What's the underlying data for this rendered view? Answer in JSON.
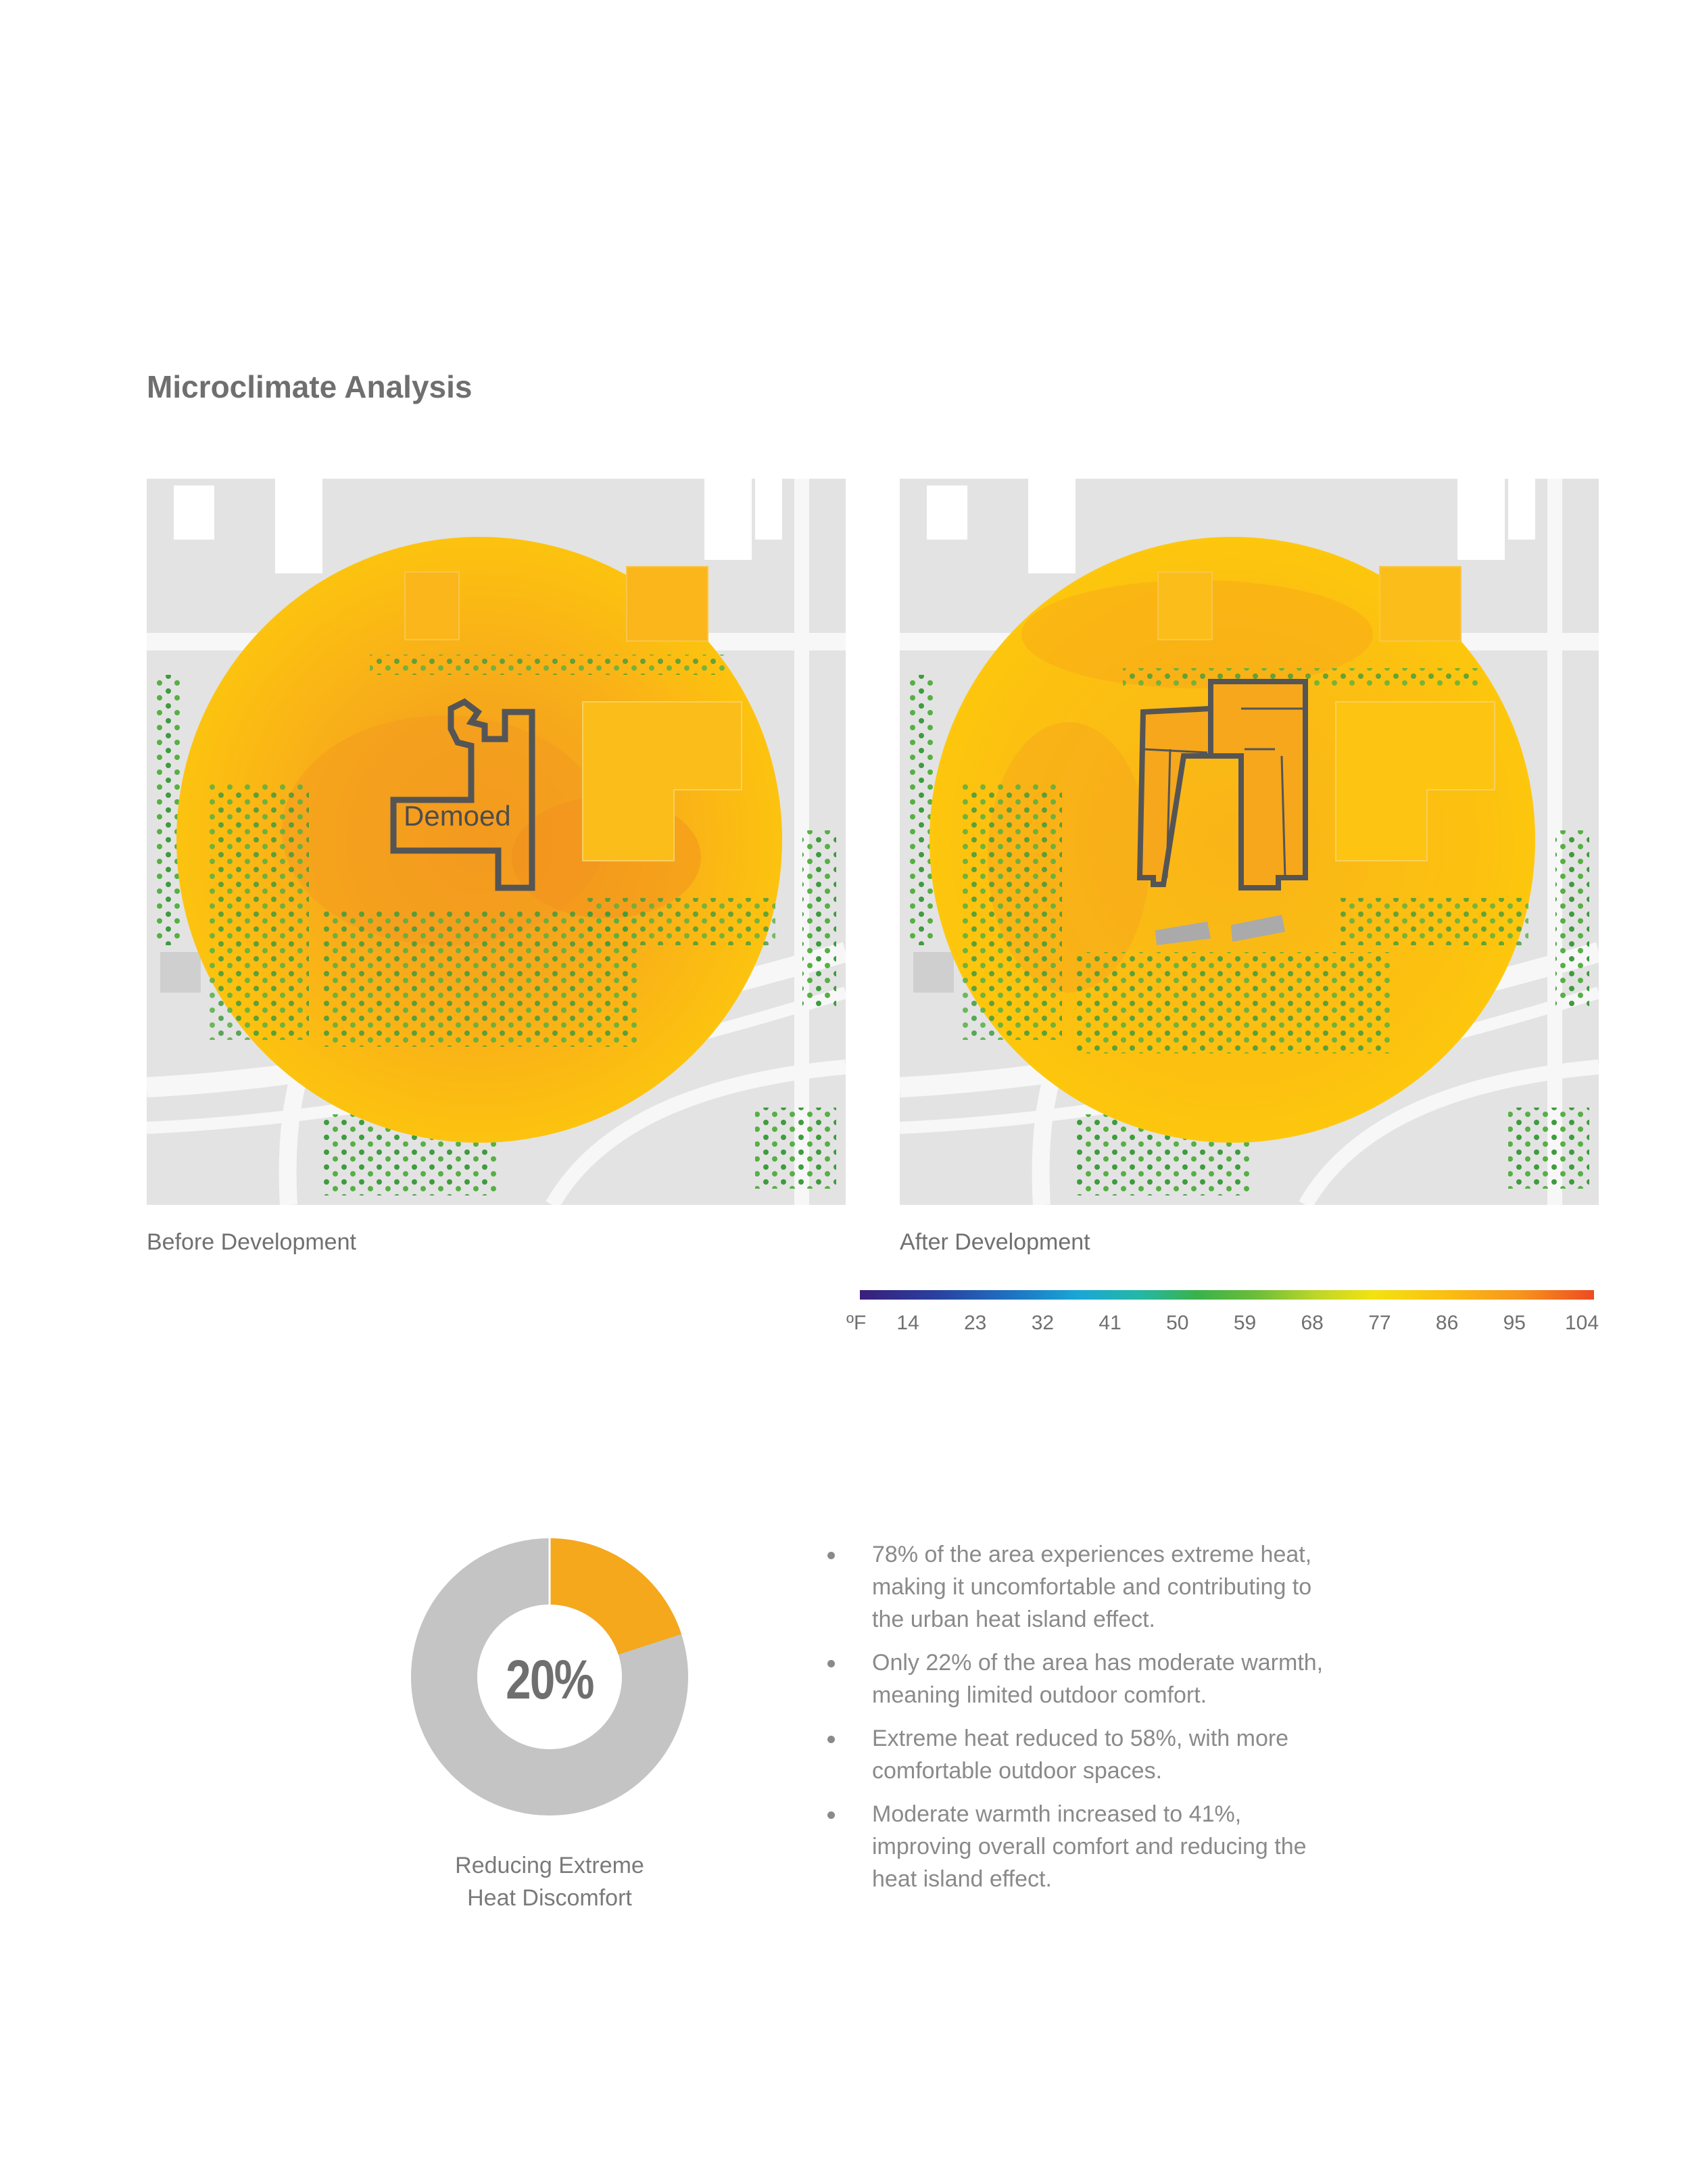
{
  "page": {
    "title": "Microclimate Analysis"
  },
  "maps": {
    "before": {
      "caption": "Before Development",
      "building_label": "Demoed"
    },
    "after": {
      "caption": "After Development"
    }
  },
  "legend": {
    "unit": "ºF",
    "ticks": [
      "14",
      "23",
      "32",
      "41",
      "50",
      "59",
      "68",
      "77",
      "86",
      "95",
      "104"
    ]
  },
  "donut": {
    "value_label": "20%",
    "fraction": 0.2,
    "accent_color": "#f5a81c",
    "rest_color": "#c4c4c4",
    "caption_line1": "Reducing Extreme",
    "caption_line2": "Heat Discomfort"
  },
  "bullets": [
    {
      "lines": [
        "78% of the area experiences extreme heat,",
        "making it uncomfortable and contributing to",
        "the urban heat island effect."
      ]
    },
    {
      "lines": [
        "Only 22% of the area has moderate warmth,",
        "meaning limited outdoor comfort."
      ]
    },
    {
      "lines": [
        "Extreme heat reduced to 58%, with more",
        "comfortable outdoor spaces."
      ]
    },
    {
      "lines": [
        "Moderate warmth increased to 41%,",
        "improving overall comfort and reducing the",
        "heat island effect."
      ]
    }
  ],
  "colors": {
    "heat_core": "#f7a81b",
    "heat_edge": "#fcc30f",
    "heat_hot": "#f18c1f",
    "tree_green": "#3f9b3f",
    "map_gray": "#e3e3e3",
    "building_outline": "#555555"
  }
}
